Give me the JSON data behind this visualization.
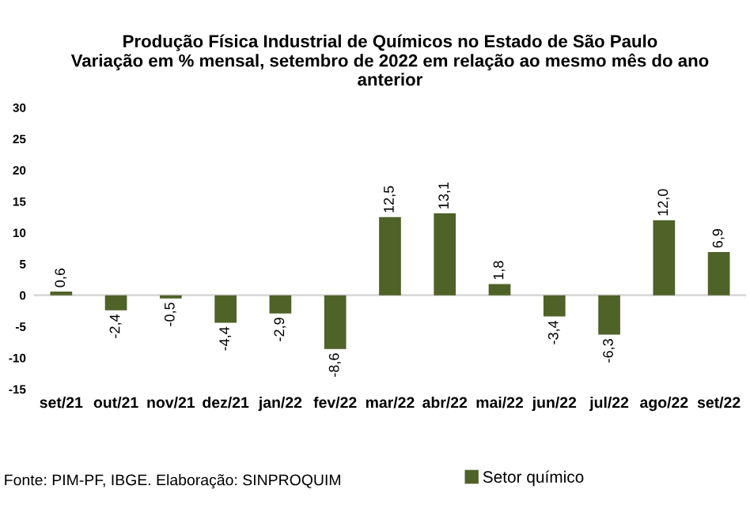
{
  "chart_data": {
    "type": "bar",
    "title": "Produção Física Industrial de Químicos no Estado de São Paulo\nVariação em % mensal, setembro de 2022 em relação ao mesmo mês do ano\nanterior",
    "categories": [
      "set/21",
      "out/21",
      "nov/21",
      "dez/21",
      "jan/22",
      "fev/22",
      "mar/22",
      "abr/22",
      "mai/22",
      "jun/22",
      "jul/22",
      "ago/22",
      "set/22"
    ],
    "series": [
      {
        "name": "Setor químico",
        "color": "#4f6228",
        "values": [
          0.6,
          -2.4,
          -0.5,
          -4.4,
          -2.9,
          -8.6,
          12.5,
          13.1,
          1.8,
          -3.4,
          -6.3,
          12.0,
          6.9
        ],
        "value_labels": [
          "0,6",
          "-2,4",
          "-0,5",
          "-4,4",
          "-2,9",
          "-8,6",
          "12,5",
          "13,1",
          "1,8",
          "-3,4",
          "-6,3",
          "12,0",
          "6,9"
        ]
      }
    ],
    "ylim": [
      -15,
      30
    ],
    "yticks": [
      -15,
      -10,
      -5,
      0,
      5,
      10,
      15,
      20,
      25,
      30
    ],
    "grid": false,
    "ref_lines": [
      {
        "axis": "y",
        "value": 0,
        "color": "#d9d9d9"
      }
    ],
    "legend": "bottom",
    "annotations": [
      "Fonte: PIM-PF, IBGE. Elaboração: SINPROQUIM"
    ]
  }
}
